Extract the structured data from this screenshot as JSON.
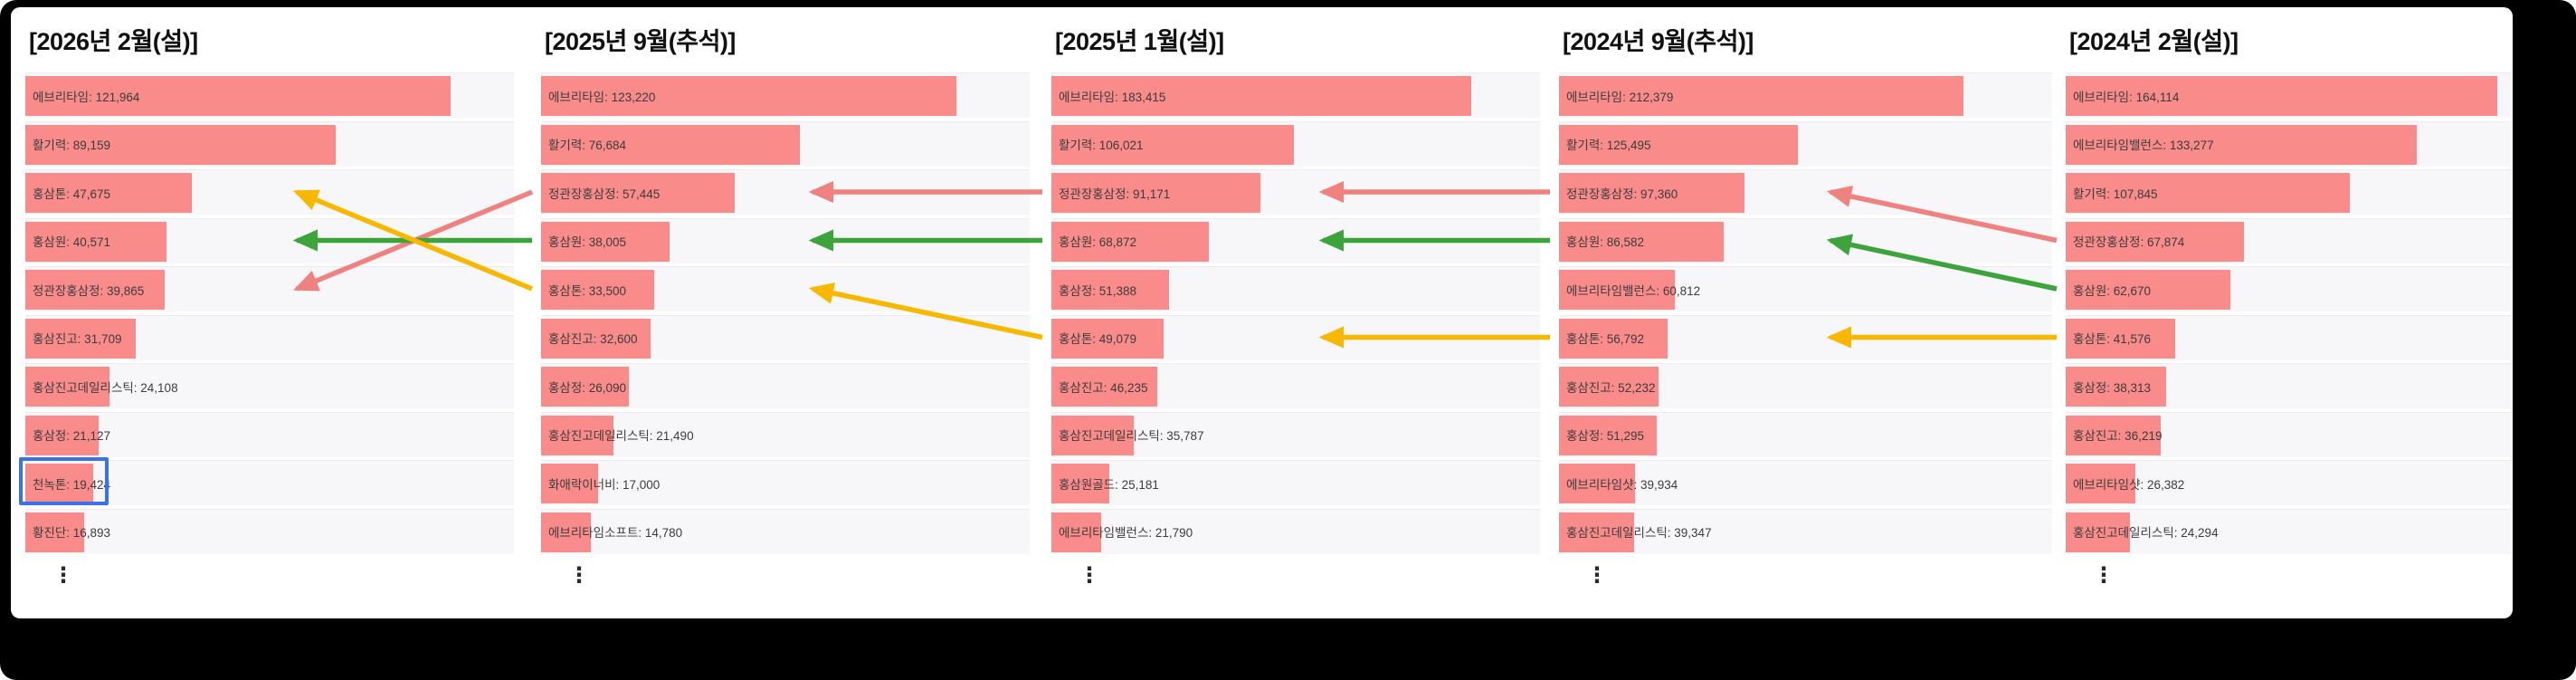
{
  "palette": {
    "bar_color": "#f98b8b",
    "arrow_pink": "#ef827f",
    "arrow_green": "#3ca43b",
    "arrow_yellow": "#f8b800",
    "highlight_blue": "#3b72e8"
  },
  "ellipsis": "⋮",
  "chart_data": [
    {
      "type": "bar",
      "title": "[2026년 2월(설)]",
      "categories": [
        "에브리타임",
        "활기력",
        "홍삼톤",
        "홍삼원",
        "정관장홍삼정",
        "홍삼진고",
        "홍삼진고데일리스틱",
        "홍삼정",
        "천녹톤",
        "황진단"
      ],
      "values": [
        121964,
        89159,
        47675,
        40571,
        39865,
        31709,
        24108,
        21127,
        19424,
        16893
      ],
      "items": [
        {
          "label": "에브리타임: 121,964",
          "name": "에브리타임",
          "value": 121964
        },
        {
          "label": "활기력: 89,159",
          "name": "활기력",
          "value": 89159
        },
        {
          "label": "홍삼톤: 47,675",
          "name": "홍삼톤",
          "value": 47675
        },
        {
          "label": "홍삼원: 40,571",
          "name": "홍삼원",
          "value": 40571
        },
        {
          "label": "정관장홍삼정: 39,865",
          "name": "정관장홍삼정",
          "value": 39865
        },
        {
          "label": "홍삼진고: 31,709",
          "name": "홍삼진고",
          "value": 31709
        },
        {
          "label": "홍삼진고데일리스틱: 24,108",
          "name": "홍삼진고데일리스틱",
          "value": 24108
        },
        {
          "label": "홍삼정: 21,127",
          "name": "홍삼정",
          "value": 21127
        },
        {
          "label": "천녹톤: 19,424",
          "name": "천녹톤",
          "value": 19424,
          "highlighted": true
        },
        {
          "label": "황진단: 16,893",
          "name": "황진단",
          "value": 16893
        }
      ]
    },
    {
      "type": "bar",
      "title": "[2025년 9월(추석)]",
      "categories": [
        "에브리타임",
        "활기력",
        "정관장홍삼정",
        "홍삼원",
        "홍삼톤",
        "홍삼진고",
        "홍삼정",
        "홍삼진고데일리스틱",
        "화애락이너비",
        "에브리타임소프트"
      ],
      "values": [
        123220,
        76684,
        57445,
        38005,
        33500,
        32600,
        26090,
        21490,
        17000,
        14780
      ],
      "items": [
        {
          "label": "에브리타임: 123,220",
          "name": "에브리타임",
          "value": 123220
        },
        {
          "label": "활기력: 76,684",
          "name": "활기력",
          "value": 76684
        },
        {
          "label": "정관장홍삼정: 57,445",
          "name": "정관장홍삼정",
          "value": 57445
        },
        {
          "label": "홍삼원: 38,005",
          "name": "홍삼원",
          "value": 38005
        },
        {
          "label": "홍삼톤: 33,500",
          "name": "홍삼톤",
          "value": 33500
        },
        {
          "label": "홍삼진고: 32,600",
          "name": "홍삼진고",
          "value": 32600
        },
        {
          "label": "홍삼정: 26,090",
          "name": "홍삼정",
          "value": 26090
        },
        {
          "label": "홍삼진고데일리스틱: 21,490",
          "name": "홍삼진고데일리스틱",
          "value": 21490
        },
        {
          "label": "화애락이너비: 17,000",
          "name": "화애락이너비",
          "value": 17000
        },
        {
          "label": "에브리타임소프트: 14,780",
          "name": "에브리타임소프트",
          "value": 14780
        }
      ]
    },
    {
      "type": "bar",
      "title": "[2025년 1월(설)]",
      "categories": [
        "에브리타임",
        "활기력",
        "정관장홍삼정",
        "홍삼원",
        "홍삼정",
        "홍삼톤",
        "홍삼진고",
        "홍삼진고데일리스틱",
        "홍삼원골드",
        "에브리타임밸런스"
      ],
      "values": [
        183415,
        106021,
        91171,
        68872,
        51388,
        49079,
        46235,
        35787,
        25181,
        21790
      ],
      "items": [
        {
          "label": "에브리타임: 183,415",
          "name": "에브리타임",
          "value": 183415
        },
        {
          "label": "활기력: 106,021",
          "name": "활기력",
          "value": 106021
        },
        {
          "label": "정관장홍삼정: 91,171",
          "name": "정관장홍삼정",
          "value": 91171
        },
        {
          "label": "홍삼원: 68,872",
          "name": "홍삼원",
          "value": 68872
        },
        {
          "label": "홍삼정: 51,388",
          "name": "홍삼정",
          "value": 51388
        },
        {
          "label": "홍삼톤: 49,079",
          "name": "홍삼톤",
          "value": 49079
        },
        {
          "label": "홍삼진고: 46,235",
          "name": "홍삼진고",
          "value": 46235
        },
        {
          "label": "홍삼진고데일리스틱: 35,787",
          "name": "홍삼진고데일리스틱",
          "value": 35787
        },
        {
          "label": "홍삼원골드: 25,181",
          "name": "홍삼원골드",
          "value": 25181
        },
        {
          "label": "에브리타임밸런스: 21,790",
          "name": "에브리타임밸런스",
          "value": 21790
        }
      ]
    },
    {
      "type": "bar",
      "title": "[2024년 9월(추석)]",
      "categories": [
        "에브리타임",
        "활기력",
        "정관장홍삼정",
        "홍삼원",
        "에브리타임밸런스",
        "홍삼톤",
        "홍삼진고",
        "홍삼정",
        "에브리타임샷",
        "홍삼진고데일리스틱"
      ],
      "values": [
        212379,
        125495,
        97360,
        86582,
        60812,
        56792,
        52232,
        51295,
        39934,
        39347
      ],
      "items": [
        {
          "label": "에브리타임: 212,379",
          "name": "에브리타임",
          "value": 212379
        },
        {
          "label": "활기력: 125,495",
          "name": "활기력",
          "value": 125495
        },
        {
          "label": "정관장홍삼정: 97,360",
          "name": "정관장홍삼정",
          "value": 97360
        },
        {
          "label": "홍삼원: 86,582",
          "name": "홍삼원",
          "value": 86582
        },
        {
          "label": "에브리타임밸런스: 60,812",
          "name": "에브리타임밸런스",
          "value": 60812
        },
        {
          "label": "홍삼톤: 56,792",
          "name": "홍삼톤",
          "value": 56792
        },
        {
          "label": "홍삼진고: 52,232",
          "name": "홍삼진고",
          "value": 52232
        },
        {
          "label": "홍삼정: 51,295",
          "name": "홍삼정",
          "value": 51295
        },
        {
          "label": "에브리타임샷: 39,934",
          "name": "에브리타임샷",
          "value": 39934
        },
        {
          "label": "홍삼진고데일리스틱: 39,347",
          "name": "홍삼진고데일리스틱",
          "value": 39347
        }
      ]
    },
    {
      "type": "bar",
      "title": "[2024년 2월(설)]",
      "categories": [
        "에브리타임",
        "에브리타임밸런스",
        "활기력",
        "정관장홍삼정",
        "홍삼원",
        "홍삼톤",
        "홍삼정",
        "홍삼진고",
        "에브리타임샷",
        "홍삼진고데일리스틱"
      ],
      "values": [
        164114,
        133277,
        107845,
        67874,
        62670,
        41576,
        38313,
        36219,
        26382,
        24294
      ],
      "items": [
        {
          "label": "에브리타임: 164,114",
          "name": "에브리타임",
          "value": 164114
        },
        {
          "label": "에브리타임밸런스: 133,277",
          "name": "에브리타임밸런스",
          "value": 133277
        },
        {
          "label": "활기력: 107,845",
          "name": "활기력",
          "value": 107845
        },
        {
          "label": "정관장홍삼정: 67,874",
          "name": "정관장홍삼정",
          "value": 67874
        },
        {
          "label": "홍삼원: 62,670",
          "name": "홍삼원",
          "value": 62670
        },
        {
          "label": "홍삼톤: 41,576",
          "name": "홍삼톤",
          "value": 41576
        },
        {
          "label": "홍삼정: 38,313",
          "name": "홍삼정",
          "value": 38313
        },
        {
          "label": "홍삼진고: 36,219",
          "name": "홍삼진고",
          "value": 36219
        },
        {
          "label": "에브리타임샷: 26,382",
          "name": "에브리타임샷",
          "value": 26382
        },
        {
          "label": "홍삼진고데일리스틱: 24,294",
          "name": "홍삼진고데일리스틱",
          "value": 24294
        }
      ]
    }
  ],
  "arrows": [
    {
      "product": "정관장홍삼정",
      "color": "pink",
      "from_chart": 2,
      "from_row": 3,
      "to_chart": 1,
      "to_row": 5
    },
    {
      "product": "홍삼원",
      "color": "green",
      "from_chart": 2,
      "from_row": 4,
      "to_chart": 1,
      "to_row": 4
    },
    {
      "product": "홍삼톤",
      "color": "yellow",
      "from_chart": 2,
      "from_row": 5,
      "to_chart": 1,
      "to_row": 3
    },
    {
      "product": "정관장홍삼정",
      "color": "pink",
      "from_chart": 3,
      "from_row": 3,
      "to_chart": 2,
      "to_row": 3
    },
    {
      "product": "홍삼원",
      "color": "green",
      "from_chart": 3,
      "from_row": 4,
      "to_chart": 2,
      "to_row": 4
    },
    {
      "product": "홍삼톤",
      "color": "yellow",
      "from_chart": 3,
      "from_row": 6,
      "to_chart": 2,
      "to_row": 5
    },
    {
      "product": "정관장홍삼정",
      "color": "pink",
      "from_chart": 4,
      "from_row": 3,
      "to_chart": 3,
      "to_row": 3
    },
    {
      "product": "홍삼원",
      "color": "green",
      "from_chart": 4,
      "from_row": 4,
      "to_chart": 3,
      "to_row": 4
    },
    {
      "product": "홍삼톤",
      "color": "yellow",
      "from_chart": 4,
      "from_row": 6,
      "to_chart": 3,
      "to_row": 6
    },
    {
      "product": "정관장홍삼정",
      "color": "pink",
      "from_chart": 5,
      "from_row": 4,
      "to_chart": 4,
      "to_row": 3
    },
    {
      "product": "홍삼원",
      "color": "green",
      "from_chart": 5,
      "from_row": 5,
      "to_chart": 4,
      "to_row": 4
    },
    {
      "product": "홍삼톤",
      "color": "yellow",
      "from_chart": 5,
      "from_row": 6,
      "to_chart": 4,
      "to_row": 6
    }
  ]
}
